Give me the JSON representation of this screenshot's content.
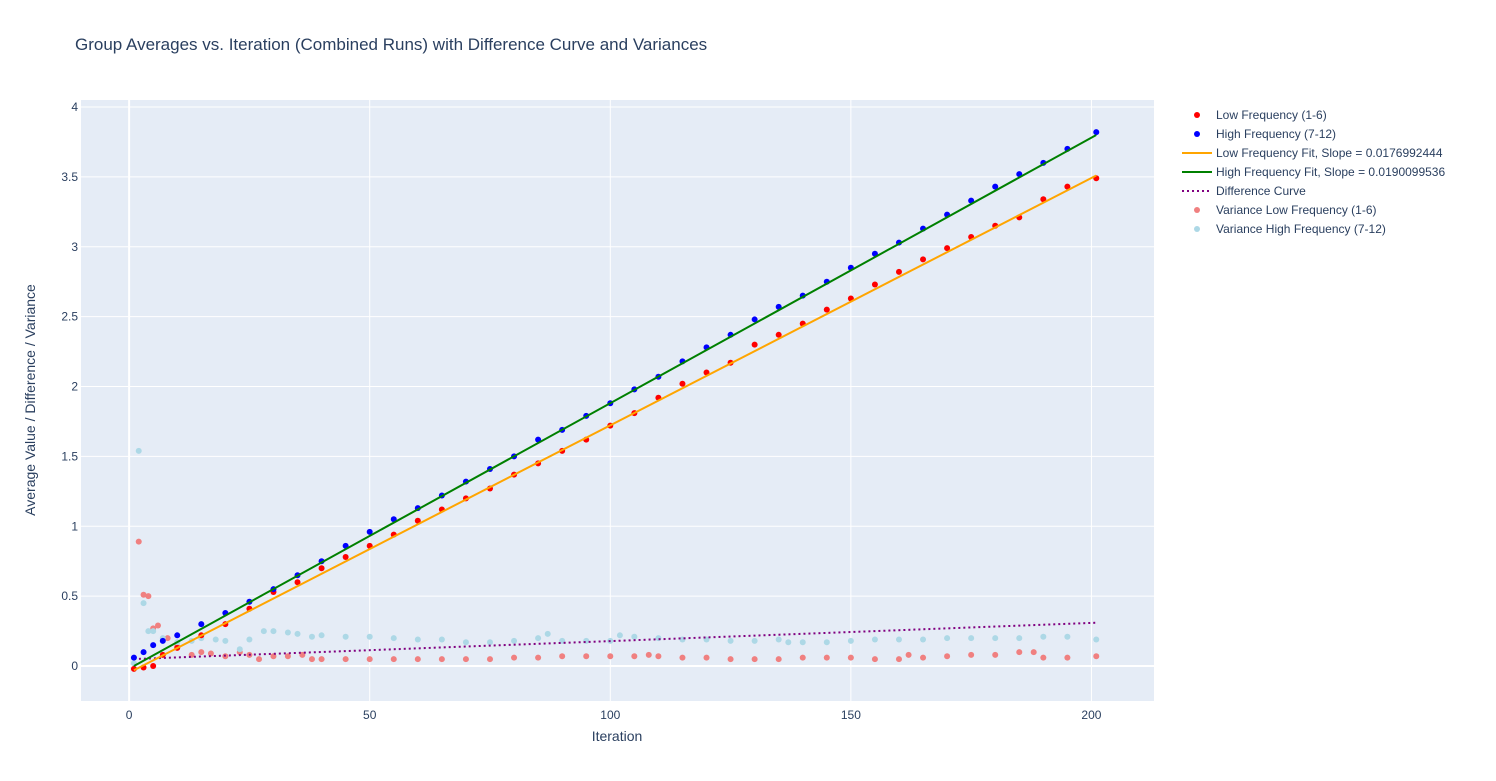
{
  "chart_data": {
    "type": "scatter",
    "title": "Group Averages vs. Iteration (Combined Runs) with Difference Curve and Variances",
    "xlabel": "Iteration",
    "ylabel": "Average Value / Difference / Variance",
    "xlim": [
      -10,
      213
    ],
    "ylim": [
      -0.25,
      4.05
    ],
    "x_ticks": [
      0,
      50,
      100,
      150,
      200
    ],
    "y_ticks": [
      0,
      0.5,
      1,
      1.5,
      2,
      2.5,
      3,
      3.5,
      4
    ],
    "x_tick_labels": [
      "0",
      "50",
      "100",
      "150",
      "200"
    ],
    "y_tick_labels": [
      "0",
      "0.5",
      "1",
      "1.5",
      "2",
      "2.5",
      "3",
      "3.5",
      "4"
    ],
    "grid": true,
    "legend_position": "right",
    "background": "#e5ecf6",
    "series": [
      {
        "name": "Low Frequency (1-6)",
        "kind": "markers",
        "color": "#ff0000",
        "x": [
          1,
          3,
          5,
          7,
          10,
          15,
          20,
          25,
          30,
          35,
          40,
          45,
          50,
          55,
          60,
          65,
          70,
          75,
          80,
          85,
          90,
          95,
          100,
          105,
          110,
          115,
          120,
          125,
          130,
          135,
          140,
          145,
          150,
          155,
          160,
          165,
          170,
          175,
          180,
          185,
          190,
          195,
          201
        ],
        "y": [
          -0.02,
          -0.01,
          0.0,
          0.08,
          0.13,
          0.22,
          0.3,
          0.41,
          0.53,
          0.6,
          0.7,
          0.78,
          0.86,
          0.94,
          1.04,
          1.12,
          1.2,
          1.27,
          1.37,
          1.45,
          1.54,
          1.62,
          1.72,
          1.81,
          1.92,
          2.02,
          2.1,
          2.17,
          2.3,
          2.37,
          2.45,
          2.55,
          2.63,
          2.73,
          2.82,
          2.91,
          2.99,
          3.07,
          3.15,
          3.21,
          3.34,
          3.43,
          3.49
        ]
      },
      {
        "name": "High Frequency (7-12)",
        "kind": "markers",
        "color": "#0000ff",
        "x": [
          1,
          3,
          5,
          7,
          10,
          15,
          20,
          25,
          30,
          35,
          40,
          45,
          50,
          55,
          60,
          65,
          70,
          75,
          80,
          85,
          90,
          95,
          100,
          105,
          110,
          115,
          120,
          125,
          130,
          135,
          140,
          145,
          150,
          155,
          160,
          165,
          170,
          175,
          180,
          185,
          190,
          195,
          201
        ],
        "y": [
          0.06,
          0.1,
          0.15,
          0.18,
          0.22,
          0.3,
          0.38,
          0.46,
          0.55,
          0.65,
          0.75,
          0.86,
          0.96,
          1.05,
          1.13,
          1.22,
          1.32,
          1.41,
          1.5,
          1.62,
          1.69,
          1.79,
          1.88,
          1.98,
          2.07,
          2.18,
          2.28,
          2.37,
          2.48,
          2.57,
          2.65,
          2.75,
          2.85,
          2.95,
          3.03,
          3.13,
          3.23,
          3.33,
          3.43,
          3.52,
          3.6,
          3.7,
          3.82
        ]
      },
      {
        "name": "Low Frequency Fit, Slope = 0.0176992444",
        "kind": "line",
        "color": "#ffa500",
        "x": [
          1,
          201
        ],
        "y": [
          -0.03,
          3.51
        ]
      },
      {
        "name": "High Frequency Fit, Slope = 0.0190099536",
        "kind": "line",
        "color": "#008000",
        "x": [
          1,
          201
        ],
        "y": [
          0.0,
          3.8
        ]
      },
      {
        "name": "Difference Curve",
        "kind": "dotted-line",
        "color": "#800080",
        "x": [
          1,
          201
        ],
        "y": [
          0.05,
          0.31
        ]
      },
      {
        "name": "Variance Low Frequency (1-6)",
        "kind": "markers",
        "color": "#f08080",
        "x": [
          2,
          3,
          4,
          5,
          6,
          8,
          10,
          13,
          15,
          17,
          20,
          23,
          25,
          27,
          30,
          33,
          36,
          38,
          40,
          45,
          50,
          55,
          60,
          65,
          70,
          75,
          80,
          85,
          90,
          95,
          100,
          105,
          108,
          110,
          115,
          120,
          125,
          130,
          135,
          140,
          145,
          150,
          155,
          160,
          162,
          165,
          170,
          175,
          180,
          185,
          188,
          190,
          195,
          201
        ],
        "y": [
          0.89,
          0.51,
          0.5,
          0.27,
          0.29,
          0.2,
          0.14,
          0.08,
          0.1,
          0.09,
          0.07,
          0.1,
          0.08,
          0.05,
          0.07,
          0.07,
          0.08,
          0.05,
          0.05,
          0.05,
          0.05,
          0.05,
          0.05,
          0.05,
          0.05,
          0.05,
          0.06,
          0.06,
          0.07,
          0.07,
          0.07,
          0.07,
          0.08,
          0.07,
          0.06,
          0.06,
          0.05,
          0.05,
          0.05,
          0.06,
          0.06,
          0.06,
          0.05,
          0.05,
          0.08,
          0.06,
          0.07,
          0.08,
          0.08,
          0.1,
          0.1,
          0.06,
          0.06,
          0.07
        ]
      },
      {
        "name": "Variance High Frequency (7-12)",
        "kind": "markers",
        "color": "#add8e6",
        "x": [
          1,
          2,
          3,
          4,
          5,
          7,
          10,
          13,
          15,
          18,
          20,
          23,
          25,
          28,
          30,
          33,
          35,
          38,
          40,
          45,
          50,
          55,
          60,
          65,
          70,
          75,
          80,
          85,
          87,
          90,
          95,
          100,
          102,
          105,
          110,
          115,
          120,
          125,
          130,
          135,
          137,
          140,
          145,
          150,
          155,
          160,
          165,
          170,
          175,
          180,
          185,
          190,
          195,
          201
        ],
        "y": [
          0.02,
          1.54,
          0.45,
          0.25,
          0.25,
          0.2,
          0.17,
          0.18,
          0.2,
          0.19,
          0.18,
          0.12,
          0.19,
          0.25,
          0.25,
          0.24,
          0.23,
          0.21,
          0.22,
          0.21,
          0.21,
          0.2,
          0.19,
          0.19,
          0.17,
          0.17,
          0.18,
          0.2,
          0.23,
          0.18,
          0.18,
          0.18,
          0.22,
          0.21,
          0.2,
          0.19,
          0.19,
          0.18,
          0.18,
          0.19,
          0.17,
          0.17,
          0.17,
          0.18,
          0.19,
          0.19,
          0.19,
          0.2,
          0.2,
          0.2,
          0.2,
          0.21,
          0.21,
          0.19
        ]
      }
    ]
  }
}
